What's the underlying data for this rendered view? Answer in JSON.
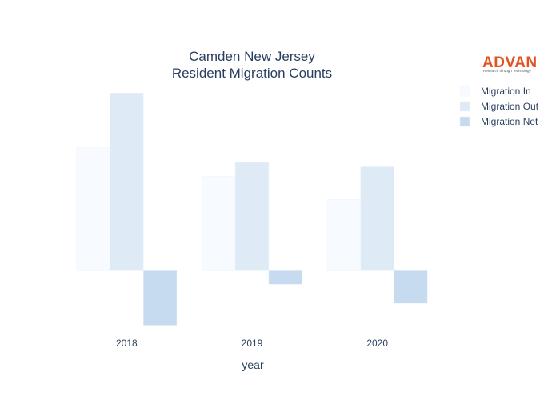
{
  "chart_data": {
    "type": "bar",
    "title_lines": [
      "Camden New Jersey",
      "Resident Migration Counts"
    ],
    "xlabel": "year",
    "ylabel": "",
    "categories": [
      "2018",
      "2019",
      "2020"
    ],
    "series": [
      {
        "name": "Migration In",
        "values": [
          2250,
          1730,
          1300
        ],
        "color": "#f7fbff"
      },
      {
        "name": "Migration Out",
        "values": [
          3250,
          1980,
          1900
        ],
        "color": "#deebf7"
      },
      {
        "name": "Migration Net",
        "values": [
          -1000,
          -250,
          -600
        ],
        "color": "#c6dbef"
      }
    ],
    "ylim": [
      -1050,
      3400
    ],
    "grid": false,
    "legend_position": "top-right"
  },
  "logo": {
    "name": "ADVAN",
    "tagline": "Research through Technology",
    "color": "#e2541f"
  }
}
